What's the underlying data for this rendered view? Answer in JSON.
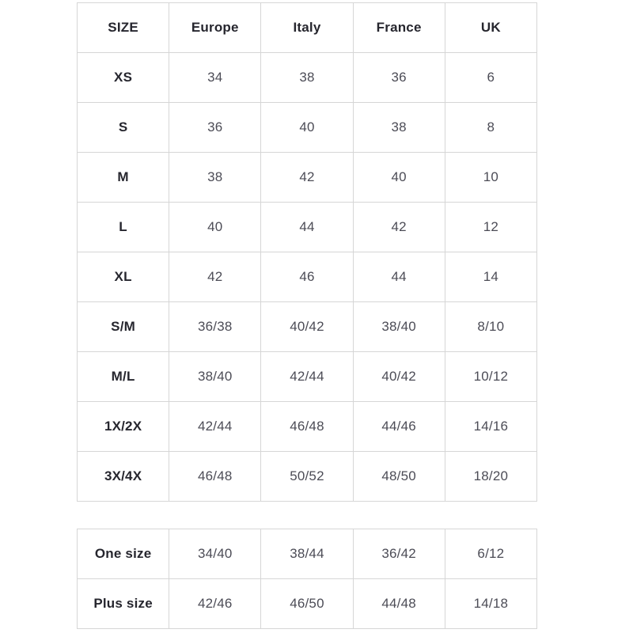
{
  "chart_data": {
    "type": "table",
    "title": "",
    "headers": [
      "SIZE",
      "Europe",
      "Italy",
      "France",
      "UK"
    ],
    "rows": [
      [
        "XS",
        "34",
        "38",
        "36",
        "6"
      ],
      [
        "S",
        "36",
        "40",
        "38",
        "8"
      ],
      [
        "M",
        "38",
        "42",
        "40",
        "10"
      ],
      [
        "L",
        "40",
        "44",
        "42",
        "12"
      ],
      [
        "XL",
        "42",
        "46",
        "44",
        "14"
      ],
      [
        "S/M",
        "36/38",
        "40/42",
        "38/40",
        "8/10"
      ],
      [
        "M/L",
        "38/40",
        "42/44",
        "40/42",
        "10/12"
      ],
      [
        "1X/2X",
        "42/44",
        "46/48",
        "44/46",
        "14/16"
      ],
      [
        "3X/4X",
        "46/48",
        "50/52",
        "48/50",
        "18/20"
      ]
    ],
    "extra_rows": [
      [
        "One size",
        "34/40",
        "38/44",
        "36/42",
        "6/12"
      ],
      [
        "Plus size",
        "42/46",
        "46/50",
        "44/48",
        "14/18"
      ]
    ]
  },
  "main_table": {
    "headers": [
      "SIZE",
      "Europe",
      "Italy",
      "France",
      "UK"
    ],
    "rows": [
      {
        "label": "XS",
        "values": [
          "34",
          "38",
          "36",
          "6"
        ]
      },
      {
        "label": "S",
        "values": [
          "36",
          "40",
          "38",
          "8"
        ]
      },
      {
        "label": "M",
        "values": [
          "38",
          "42",
          "40",
          "10"
        ]
      },
      {
        "label": "L",
        "values": [
          "40",
          "44",
          "42",
          "12"
        ]
      },
      {
        "label": "XL",
        "values": [
          "42",
          "46",
          "44",
          "14"
        ]
      },
      {
        "label": "S/M",
        "values": [
          "36/38",
          "40/42",
          "38/40",
          "8/10"
        ]
      },
      {
        "label": "M/L",
        "values": [
          "38/40",
          "42/44",
          "40/42",
          "10/12"
        ]
      },
      {
        "label": "1X/2X",
        "values": [
          "42/44",
          "46/48",
          "44/46",
          "14/16"
        ]
      },
      {
        "label": "3X/4X",
        "values": [
          "46/48",
          "50/52",
          "48/50",
          "18/20"
        ]
      }
    ]
  },
  "special_table": {
    "rows": [
      {
        "label": "One size",
        "values": [
          "34/40",
          "38/44",
          "36/42",
          "6/12"
        ]
      },
      {
        "label": "Plus size",
        "values": [
          "42/46",
          "46/50",
          "44/48",
          "14/18"
        ]
      }
    ]
  },
  "colors": {
    "header_text": "#26262e",
    "value_text": "#4c4c56",
    "border": "#d6d6d6",
    "background": "#ffffff"
  }
}
